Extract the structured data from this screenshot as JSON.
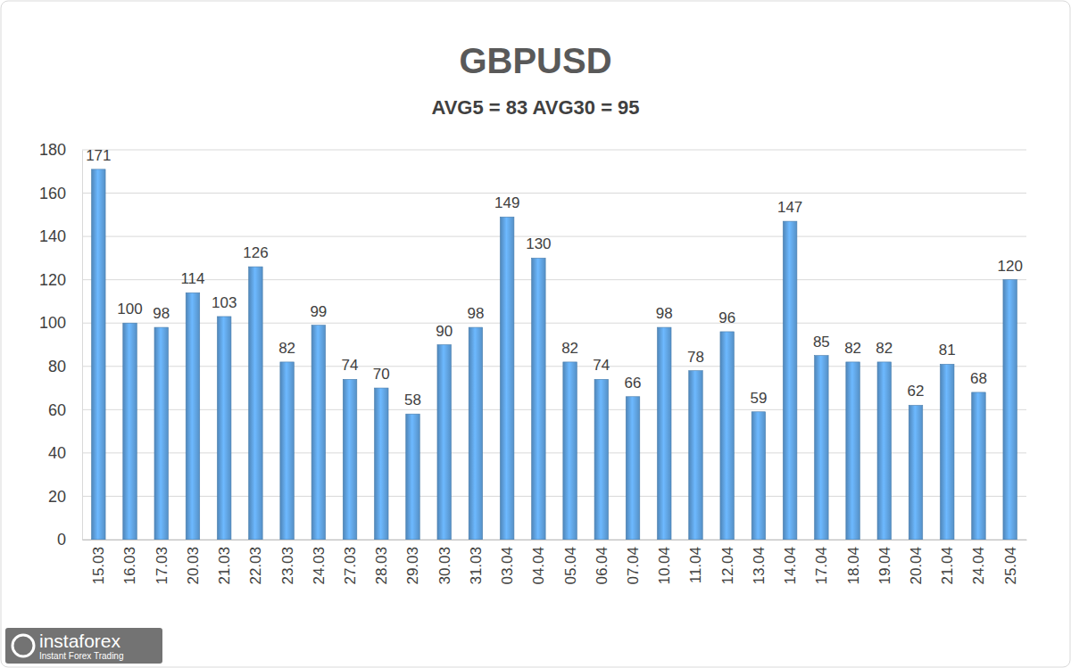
{
  "chart_data": {
    "type": "bar",
    "title": "GBPUSD",
    "subtitle": "AVG5 = 83 AVG30 = 95",
    "categories": [
      "15.03",
      "16.03",
      "17.03",
      "20.03",
      "21.03",
      "22.03",
      "23.03",
      "24.03",
      "27.03",
      "28.03",
      "29.03",
      "30.03",
      "31.03",
      "03.04",
      "04.04",
      "05.04",
      "06.04",
      "07.04",
      "10.04",
      "11.04",
      "12.04",
      "13.04",
      "14.04",
      "17.04",
      "18.04",
      "19.04",
      "20.04",
      "21.04",
      "24.04",
      "25.04"
    ],
    "values": [
      171,
      100,
      98,
      114,
      103,
      126,
      82,
      99,
      74,
      70,
      58,
      90,
      98,
      149,
      130,
      82,
      74,
      66,
      98,
      78,
      96,
      59,
      147,
      85,
      82,
      82,
      62,
      81,
      68,
      120
    ],
    "color": "#5b9bd5",
    "ylim": [
      0,
      180
    ],
    "yticks": [
      0,
      20,
      40,
      60,
      80,
      100,
      120,
      140,
      160,
      180
    ],
    "grid": true,
    "data_labels": true,
    "annotations": [
      "instaforex",
      "Instant Forex Trading"
    ]
  }
}
